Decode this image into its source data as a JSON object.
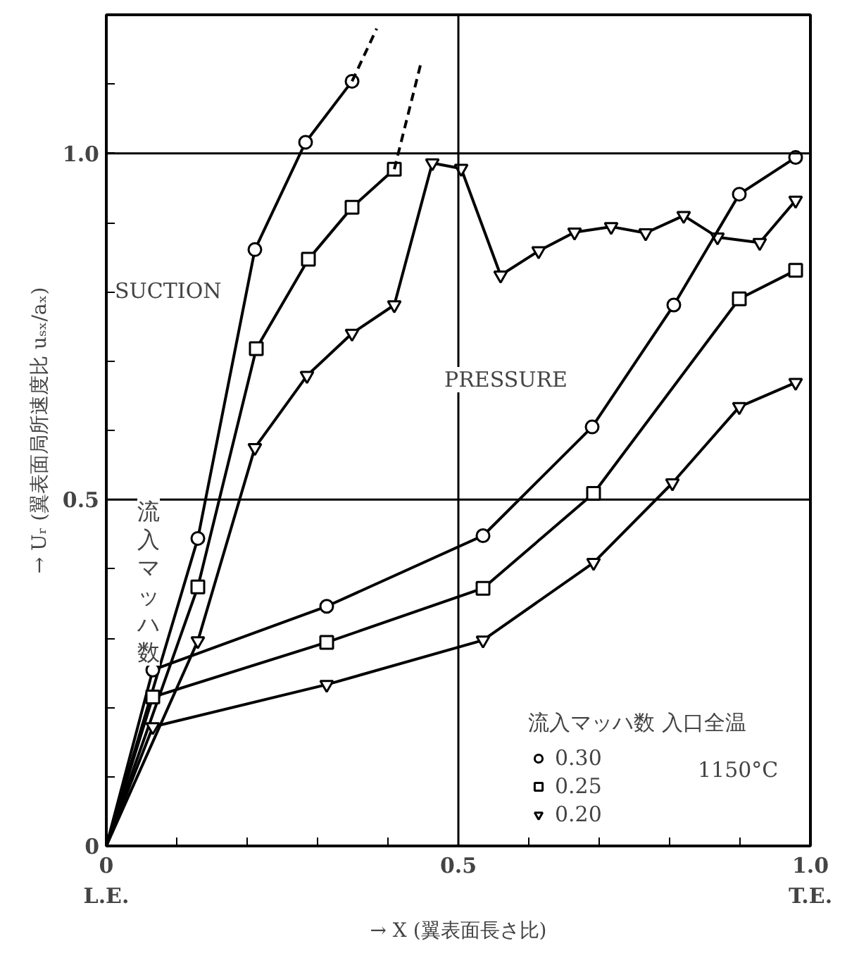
{
  "chart_data": {
    "type": "line",
    "xlabel": "→ X (翼表面長さ比)",
    "ylabel": "→ Uᵣ (翼表面局所速度比 uₛₓ/aₓ)",
    "legend_title": "流入マッハ数 入口全温",
    "legend": "bottom right",
    "xlim": [
      0,
      1.0
    ],
    "ylim": [
      0,
      1.2
    ],
    "xticks": [
      0,
      {
        "value": 0.1,
        "label": null
      },
      {
        "value": 0.2,
        "label": null
      },
      {
        "value": 0.3,
        "label": null
      },
      {
        "value": 0.4,
        "label": null
      },
      0.5,
      {
        "value": 0.6,
        "label": null
      },
      {
        "value": 0.7,
        "label": null
      },
      {
        "value": 0.8,
        "label": null
      },
      {
        "value": 0.9,
        "label": null
      },
      {
        "value": 1.0,
        "label": "1.0"
      }
    ],
    "yticks": [
      0,
      {
        "value": 0.1,
        "label": null
      },
      {
        "value": 0.2,
        "label": null
      },
      {
        "value": 0.3,
        "label": null
      },
      {
        "value": 0.4,
        "label": null
      },
      0.5,
      {
        "value": 0.6,
        "label": null
      },
      {
        "value": 0.7,
        "label": null
      },
      {
        "value": 0.8,
        "label": null
      },
      {
        "value": 0.9,
        "label": null
      },
      {
        "value": 1.0,
        "label": "1.0"
      },
      {
        "value": 1.1,
        "label": null
      }
    ],
    "grid": false,
    "ref_lines": [
      {
        "axis": "x",
        "value": 0.5,
        "label": null
      },
      {
        "axis": "y",
        "value": 0.5,
        "label": null
      },
      {
        "axis": "y",
        "value": 1.0,
        "label": null
      }
    ],
    "annotations": [
      "SUCTION",
      "PRESSURE",
      "流入マッハ数",
      "1150°C",
      "L.E.",
      "T.E."
    ],
    "series": [
      {
        "name": "0.30",
        "color": "#000000",
        "marker": "circle",
        "line_style": "solid",
        "x": [
          0,
          0.13,
          0.211,
          0.283,
          0.349
        ],
        "values": [
          0,
          0.444,
          0.861,
          1.016,
          1.104
        ]
      },
      {
        "name": "0.25",
        "color": "#000000",
        "marker": "square",
        "line_style": "solid",
        "x": [
          0,
          0.13,
          0.213,
          0.287,
          0.349,
          0.409
        ],
        "values": [
          0,
          0.374,
          0.718,
          0.847,
          0.922,
          0.977
        ]
      },
      {
        "name": "0.20",
        "color": "#000000",
        "marker": "triangle",
        "line_style": "solid",
        "x": [
          0,
          0.13,
          0.211,
          0.285,
          0.349,
          0.409,
          0.463,
          0.504,
          0.56,
          0.614,
          0.665,
          0.717,
          0.766,
          0.82,
          0.868,
          0.928,
          0.979
        ],
        "values": [
          0,
          0.296,
          0.575,
          0.679,
          0.74,
          0.781,
          0.986,
          0.978,
          0.824,
          0.859,
          0.886,
          0.894,
          0.885,
          0.91,
          0.879,
          0.871,
          0.932
        ]
      },
      {
        "color": "#000000",
        "marker": "circle",
        "line_style": "solid",
        "x": [
          0,
          0.066,
          0.313,
          0.535,
          0.69,
          0.806,
          0.899,
          0.979
        ],
        "values": [
          0,
          0.254,
          0.346,
          0.448,
          0.605,
          0.781,
          0.941,
          0.994
        ]
      },
      {
        "color": "#000000",
        "marker": "square",
        "line_style": "solid",
        "x": [
          0,
          0.066,
          0.313,
          0.535,
          0.692,
          0.899,
          0.979
        ],
        "values": [
          0,
          0.215,
          0.294,
          0.372,
          0.509,
          0.79,
          0.831
        ]
      },
      {
        "color": "#000000",
        "marker": "triangle",
        "line_style": "solid",
        "x": [
          0,
          0.066,
          0.313,
          0.535,
          0.692,
          0.804,
          0.899,
          0.979
        ],
        "values": [
          0,
          0.172,
          0.233,
          0.297,
          0.409,
          0.524,
          0.634,
          0.669
        ]
      },
      {
        "color": "#000000",
        "marker": "none",
        "line_style": "dashed",
        "x": [
          0.349,
          0.384
        ],
        "values": [
          1.104,
          1.18
        ]
      },
      {
        "color": "#000000",
        "marker": "none",
        "line_style": "dashed",
        "x": [
          0.409,
          0.448
        ],
        "values": [
          0.977,
          1.135
        ]
      }
    ]
  }
}
